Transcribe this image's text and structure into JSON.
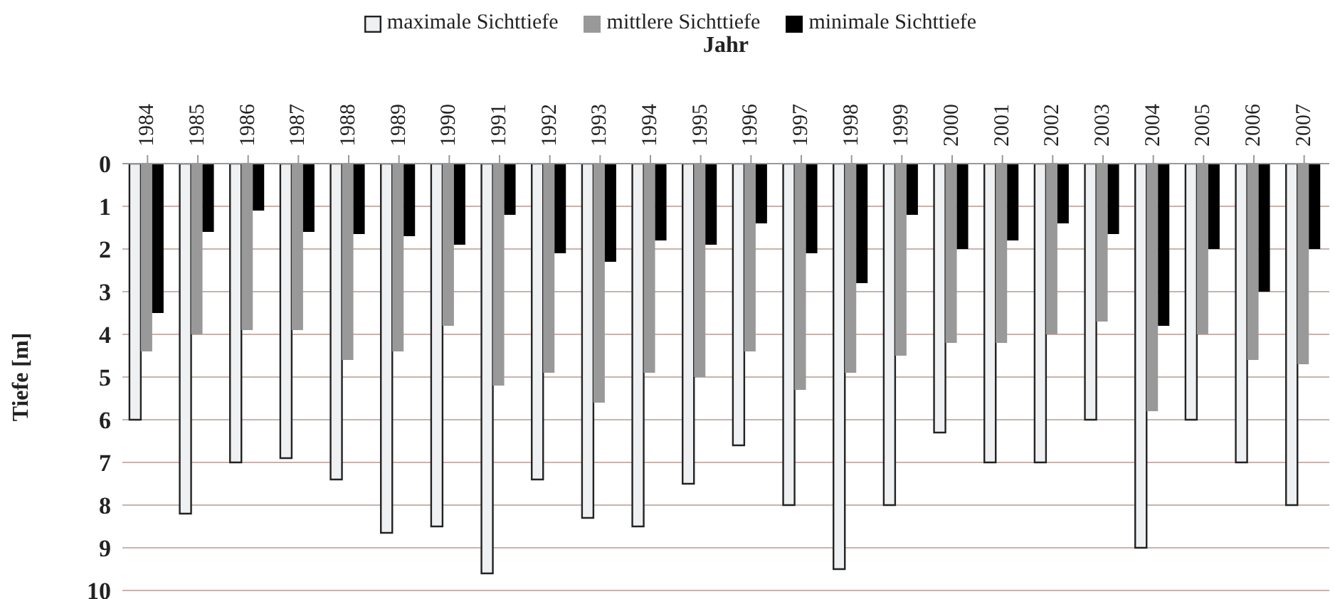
{
  "chart_data": {
    "type": "bar",
    "xlabel": "Jahr",
    "ylabel": "Tiefe [m]",
    "categories": [
      "1984",
      "1985",
      "1986",
      "1987",
      "1988",
      "1989",
      "1990",
      "1991",
      "1992",
      "1993",
      "1994",
      "1995",
      "1996",
      "1997",
      "1998",
      "1999",
      "2000",
      "2001",
      "2002",
      "2003",
      "2004",
      "2005",
      "2006",
      "2007"
    ],
    "series": [
      {
        "name": "maximale Sichttiefe",
        "color": "#eef0f2",
        "values": [
          6.0,
          8.2,
          7.0,
          6.9,
          7.4,
          8.65,
          8.5,
          9.6,
          7.4,
          8.3,
          8.5,
          7.5,
          6.6,
          8.0,
          9.5,
          8.0,
          6.3,
          7.0,
          7.0,
          6.0,
          9.0,
          6.0,
          7.0,
          8.0
        ]
      },
      {
        "name": "mittlere Sichttiefe",
        "color": "#999999",
        "values": [
          4.4,
          4.0,
          3.9,
          3.9,
          4.6,
          4.4,
          3.8,
          5.2,
          4.9,
          5.6,
          4.9,
          5.0,
          4.4,
          5.3,
          4.9,
          4.5,
          4.2,
          4.2,
          4.0,
          3.7,
          5.8,
          4.0,
          4.6,
          4.7
        ]
      },
      {
        "name": "minimale Sichttiefe",
        "color": "#000000",
        "values": [
          3.5,
          1.6,
          1.1,
          1.6,
          1.65,
          1.7,
          1.9,
          1.2,
          2.1,
          2.3,
          1.8,
          1.9,
          1.4,
          2.1,
          2.8,
          1.2,
          2.0,
          1.8,
          1.4,
          1.65,
          3.8,
          2.0,
          3.0,
          2.0
        ]
      }
    ],
    "ylim": [
      10,
      0
    ],
    "yticks": [
      0,
      1,
      2,
      3,
      4,
      5,
      6,
      7,
      8,
      9,
      10
    ],
    "grid": "y",
    "legend": "top"
  }
}
